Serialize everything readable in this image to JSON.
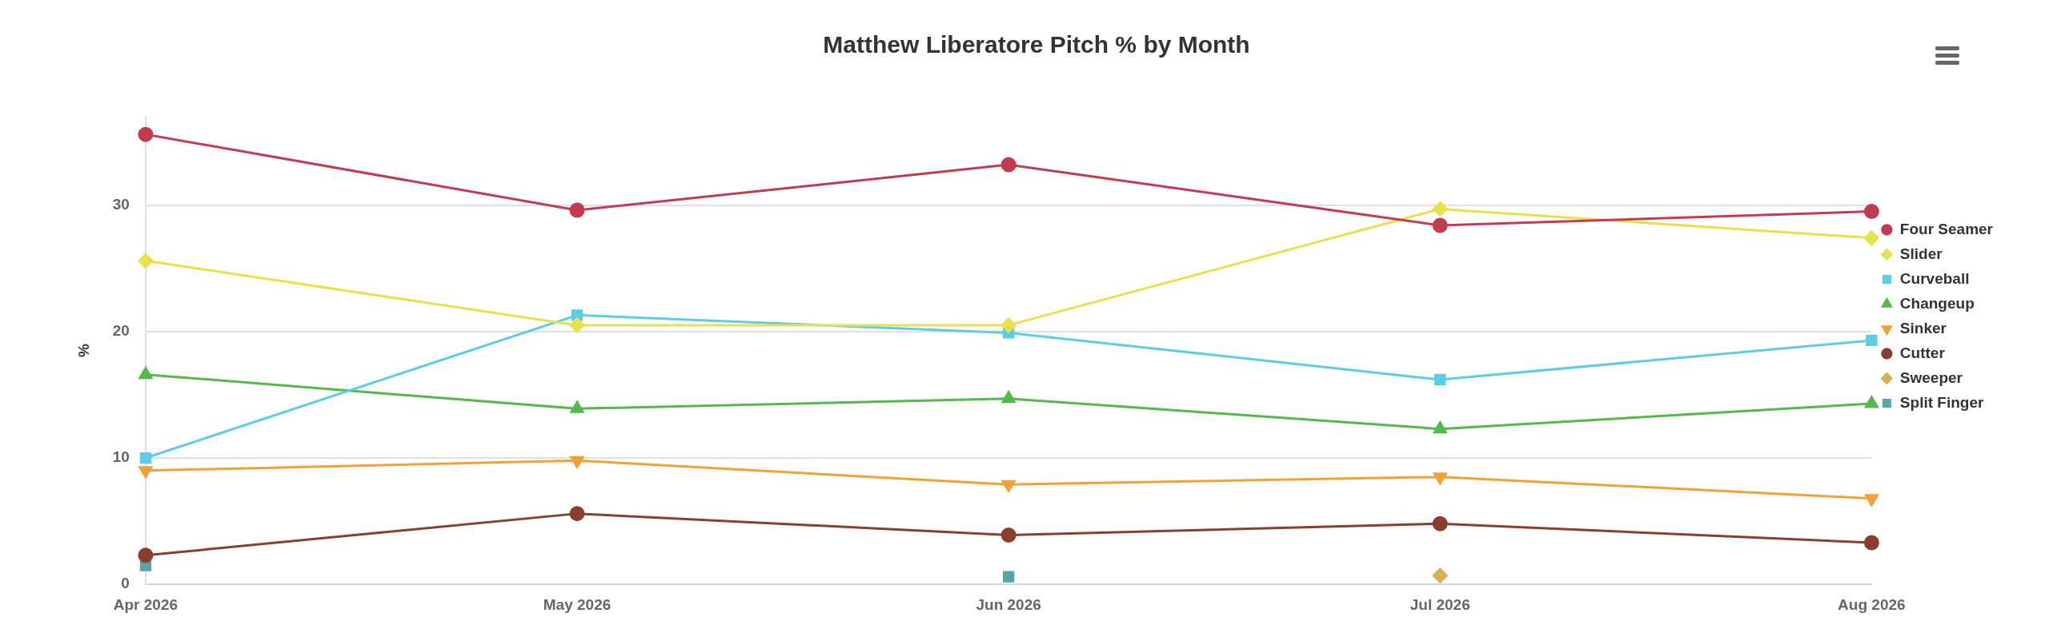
{
  "chart_data": {
    "type": "line",
    "title": "Matthew Liberatore Pitch % by Month",
    "ylabel": "%",
    "categories": [
      "Apr 2026",
      "May 2026",
      "Jun 2026",
      "Jul 2026",
      "Aug 2026"
    ],
    "ylim": [
      0,
      37
    ],
    "yticks": [
      0,
      10,
      20,
      30
    ],
    "grid": "y",
    "legend": "right",
    "series": [
      {
        "name": "Four Seamer",
        "color": "#c43a4e",
        "marker": "circle",
        "values": [
          35.6,
          29.6,
          33.2,
          28.4,
          29.5
        ]
      },
      {
        "name": "Slider",
        "color": "#e8e24a",
        "marker": "diamond",
        "values": [
          25.6,
          20.5,
          20.5,
          29.7,
          27.4
        ]
      },
      {
        "name": "Curveball",
        "color": "#5bcde6",
        "marker": "square",
        "values": [
          10.0,
          21.3,
          19.9,
          16.2,
          19.3
        ]
      },
      {
        "name": "Changeup",
        "color": "#54b949",
        "marker": "triangle",
        "values": [
          16.6,
          13.9,
          14.7,
          12.3,
          14.3
        ]
      },
      {
        "name": "Sinker",
        "color": "#f2a134",
        "marker": "triangle-down",
        "values": [
          9.0,
          9.8,
          7.9,
          8.5,
          6.8
        ]
      },
      {
        "name": "Cutter",
        "color": "#8a3f2e",
        "marker": "circle",
        "values": [
          2.3,
          5.6,
          3.9,
          4.8,
          3.3
        ]
      },
      {
        "name": "Sweeper",
        "type": "scatter",
        "color": "#d6b24e",
        "marker": "diamond",
        "values": [
          null,
          null,
          null,
          0.7,
          null
        ]
      },
      {
        "name": "Split Finger",
        "type": "scatter",
        "color": "#55a7a7",
        "marker": "square",
        "values": [
          1.5,
          null,
          0.6,
          null,
          null
        ]
      }
    ]
  }
}
